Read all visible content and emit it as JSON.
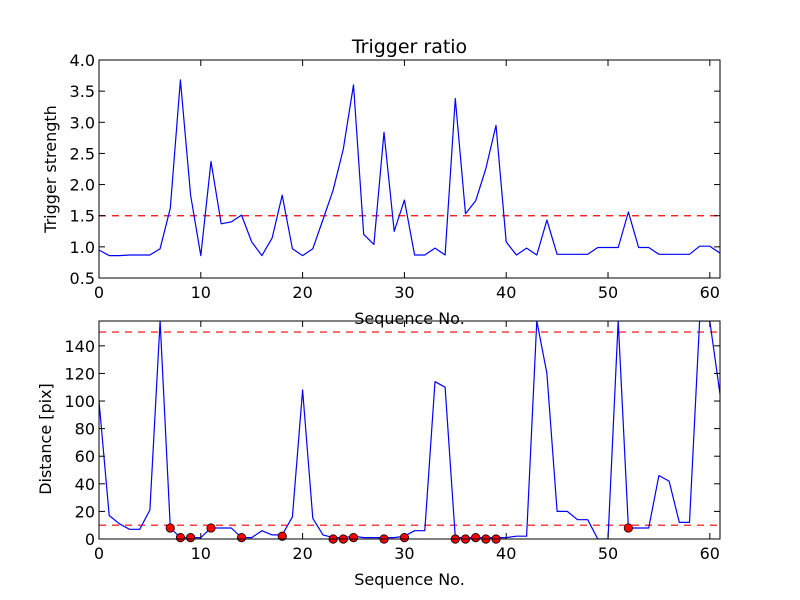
{
  "chart_data": [
    {
      "type": "line",
      "title": "Trigger ratio",
      "xlabel": "Sequence No.",
      "ylabel": "Trigger strength",
      "xlim": [
        0,
        61
      ],
      "ylim": [
        0.5,
        4.0
      ],
      "xticks": [
        "0",
        "10",
        "20",
        "30",
        "40",
        "50",
        "60"
      ],
      "yticks": [
        "0.5",
        "1.0",
        "1.5",
        "2.0",
        "2.5",
        "3.0",
        "3.5",
        "4.0"
      ],
      "grid": false,
      "series": [
        {
          "color": "#0000ff",
          "x": [
            0,
            1,
            2,
            3,
            4,
            5,
            6,
            7,
            8,
            9,
            10,
            11,
            12,
            13,
            14,
            15,
            16,
            17,
            18,
            19,
            20,
            21,
            22,
            23,
            24,
            25,
            26,
            27,
            28,
            29,
            30,
            31,
            32,
            33,
            34,
            35,
            36,
            37,
            38,
            39,
            40,
            41,
            42,
            43,
            44,
            45,
            46,
            47,
            48,
            49,
            50,
            51,
            52,
            53,
            54,
            55,
            56,
            57,
            58,
            59,
            60,
            61
          ],
          "values": [
            0.95,
            0.86,
            0.86,
            0.87,
            0.87,
            0.87,
            0.97,
            1.62,
            3.68,
            1.83,
            0.86,
            2.37,
            1.37,
            1.4,
            1.51,
            1.08,
            0.86,
            1.14,
            1.83,
            0.97,
            0.86,
            0.97,
            1.44,
            1.91,
            2.57,
            3.6,
            1.2,
            1.04,
            2.84,
            1.25,
            1.75,
            0.87,
            0.87,
            0.98,
            0.87,
            3.38,
            1.53,
            1.74,
            2.26,
            2.95,
            1.08,
            0.87,
            0.98,
            0.87,
            1.43,
            0.88,
            0.88,
            0.88,
            0.88,
            0.99,
            0.99,
            0.99,
            1.56,
            0.99,
            0.99,
            0.88,
            0.88,
            0.88,
            0.88,
            1.01,
            1.01,
            0.9
          ]
        }
      ],
      "threshold": {
        "value": 1.5,
        "color": "#ff0000",
        "style": "dashed"
      }
    },
    {
      "type": "line",
      "title": "",
      "xlabel": "Sequence No.",
      "ylabel": "Distance [pix]",
      "xlim": [
        0,
        61
      ],
      "ylim": [
        0,
        158
      ],
      "xticks": [
        "0",
        "10",
        "20",
        "30",
        "40",
        "50",
        "60"
      ],
      "yticks": [
        "0",
        "20",
        "40",
        "60",
        "80",
        "100",
        "120",
        "140"
      ],
      "grid": false,
      "series": [
        {
          "color": "#0000ff",
          "x": [
            0,
            1,
            2,
            3,
            4,
            5,
            6,
            7,
            8,
            9,
            10,
            11,
            12,
            13,
            14,
            15,
            16,
            17,
            18,
            19,
            20,
            21,
            22,
            23,
            24,
            25,
            26,
            27,
            28,
            29,
            30,
            31,
            32,
            33,
            34,
            35,
            36,
            37,
            38,
            39,
            40,
            41,
            42,
            43,
            44,
            45,
            46,
            47,
            48,
            49,
            50,
            51,
            52,
            53,
            54,
            55,
            56,
            57,
            58,
            59,
            60,
            61
          ],
          "values": [
            100,
            17,
            11,
            7,
            7,
            21,
            158,
            8,
            1,
            1,
            1,
            8,
            8,
            8,
            1,
            1,
            6,
            3,
            3,
            16,
            108,
            15,
            3,
            1,
            1,
            2,
            1,
            1,
            1,
            1,
            2,
            6,
            6,
            114,
            110,
            1,
            1,
            1,
            1,
            1,
            1,
            2,
            2,
            158,
            120,
            20,
            20,
            14,
            14,
            0,
            0,
            158,
            8,
            8,
            8,
            46,
            42,
            12,
            12,
            158,
            158,
            105
          ]
        },
        {
          "name": "",
          "type": "scatter",
          "color": "#ff0000",
          "x": [
            7,
            8,
            9,
            11,
            14,
            18,
            23,
            24,
            25,
            28,
            30,
            35,
            36,
            37,
            38,
            39,
            52
          ],
          "values": [
            8,
            1,
            1,
            8,
            1,
            2,
            0,
            0,
            1,
            0,
            1,
            0,
            0,
            1,
            0,
            0,
            8
          ]
        }
      ],
      "thresholds": [
        {
          "value": 150,
          "color": "#ff0000",
          "style": "dashed"
        },
        {
          "value": 10,
          "color": "#ff0000",
          "style": "dashed"
        }
      ]
    }
  ]
}
